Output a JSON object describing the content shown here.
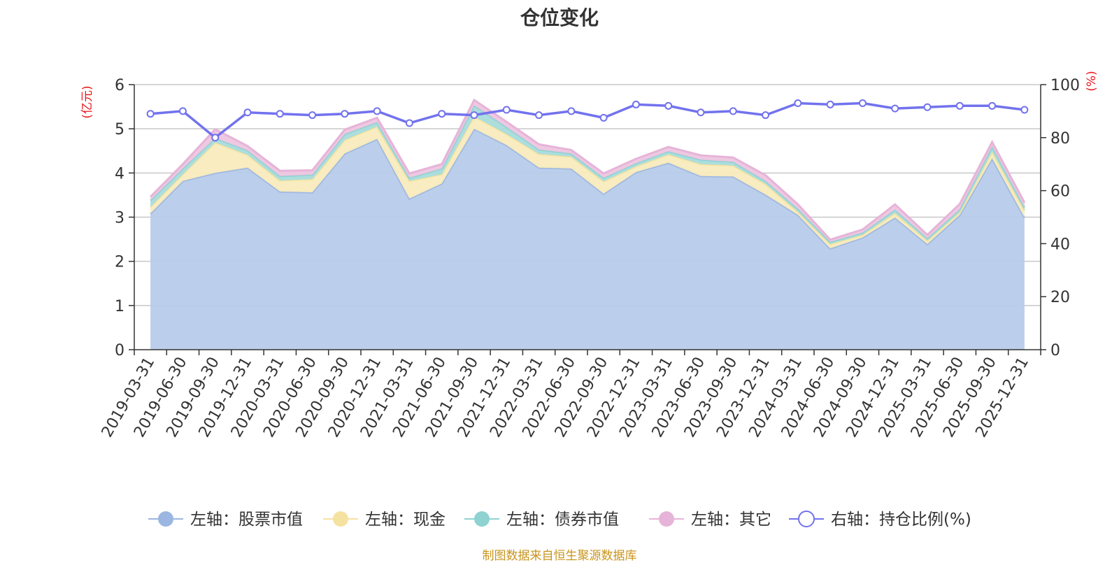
{
  "chart_data": {
    "type": "area",
    "title": "仓位变化",
    "left_axis": {
      "label": "(亿元)",
      "min": 0,
      "max": 6,
      "ticks": [
        0,
        1,
        2,
        3,
        4,
        5,
        6
      ]
    },
    "right_axis": {
      "label": "(%)",
      "min": 0,
      "max": 100,
      "ticks": [
        0,
        20,
        40,
        60,
        80,
        100
      ]
    },
    "categories": [
      "2019-03-31",
      "2019-06-30",
      "2019-09-30",
      "2019-12-31",
      "2020-03-31",
      "2020-06-30",
      "2020-09-30",
      "2020-12-31",
      "2021-03-31",
      "2021-06-30",
      "2021-09-30",
      "2021-12-31",
      "2022-03-31",
      "2022-06-30",
      "2022-09-30",
      "2022-12-31",
      "2023-03-31",
      "2023-06-30",
      "2023-09-30",
      "2023-12-31",
      "2024-03-31",
      "2024-06-30",
      "2024-09-30",
      "2024-12-31",
      "2025-03-31",
      "2025-06-30",
      "2025-09-30",
      "2025-12-31"
    ],
    "series": [
      {
        "name": "左轴：股票市值",
        "axis": "left",
        "type": "stacked-area",
        "color": "#9bb6e0",
        "fill": "#b7cbea",
        "values": [
          3.08,
          3.82,
          4.0,
          4.12,
          3.58,
          3.56,
          4.44,
          4.77,
          3.42,
          3.76,
          5.0,
          4.63,
          4.12,
          4.1,
          3.53,
          4.02,
          4.23,
          3.93,
          3.92,
          3.51,
          3.05,
          2.29,
          2.54,
          2.99,
          2.39,
          3.05,
          4.33,
          2.99
        ]
      },
      {
        "name": "左轴：现金",
        "axis": "left",
        "type": "stacked-area",
        "color": "#f5e2a0",
        "fill": "#f8ebbd",
        "values": [
          0.15,
          0.15,
          0.69,
          0.29,
          0.25,
          0.3,
          0.31,
          0.28,
          0.4,
          0.21,
          0.28,
          0.25,
          0.31,
          0.27,
          0.28,
          0.13,
          0.19,
          0.27,
          0.25,
          0.24,
          0.07,
          0.1,
          0.06,
          0.1,
          0.08,
          0.06,
          0.15,
          0.16
        ]
      },
      {
        "name": "左轴：债券市值",
        "axis": "left",
        "type": "stacked-area",
        "color": "#8fd2d2",
        "fill": "#a8dcdc",
        "values": [
          0.15,
          0.13,
          0.1,
          0.1,
          0.1,
          0.1,
          0.13,
          0.1,
          0.07,
          0.13,
          0.25,
          0.16,
          0.1,
          0.07,
          0.08,
          0.07,
          0.07,
          0.1,
          0.08,
          0.07,
          0.07,
          0.05,
          0.05,
          0.08,
          0.05,
          0.07,
          0.12,
          0.07
        ]
      },
      {
        "name": "左轴：其它",
        "axis": "left",
        "type": "stacked-area",
        "color": "#e6b4d8",
        "fill": "#eec5e0",
        "values": [
          0.08,
          0.1,
          0.2,
          0.1,
          0.12,
          0.1,
          0.1,
          0.1,
          0.1,
          0.1,
          0.12,
          0.12,
          0.12,
          0.08,
          0.1,
          0.1,
          0.1,
          0.1,
          0.1,
          0.13,
          0.1,
          0.05,
          0.07,
          0.12,
          0.08,
          0.12,
          0.1,
          0.11
        ]
      },
      {
        "name": "右轴：持仓比例(%)",
        "axis": "right",
        "type": "line",
        "color": "#7272ee",
        "values": [
          89,
          90,
          80,
          89.5,
          89,
          88.5,
          89,
          90,
          85.5,
          89,
          88.5,
          90.5,
          88.5,
          90,
          87.5,
          92.5,
          92,
          89.5,
          90,
          88.5,
          93,
          92.5,
          93,
          91,
          91.5,
          92,
          92,
          90.5
        ]
      }
    ]
  },
  "source_note": "制图数据来自恒生聚源数据库"
}
